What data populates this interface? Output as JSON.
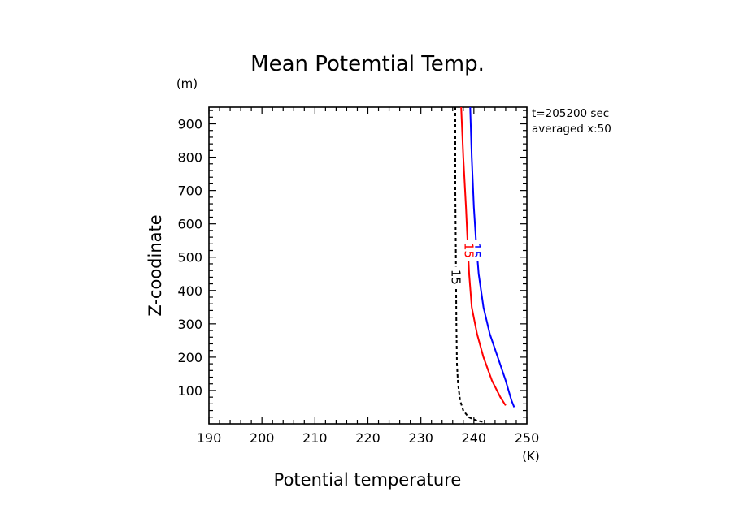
{
  "chart_data": {
    "type": "line",
    "title": "Mean Potemtial Temp.",
    "xlabel": "Potential temperature",
    "ylabel": "Z-coodinate",
    "x_unit": "(K)",
    "y_unit": "(m)",
    "xlim": [
      190,
      250
    ],
    "ylim": [
      0,
      950
    ],
    "x_ticks": [
      190,
      200,
      210,
      220,
      230,
      240,
      250
    ],
    "y_ticks": [
      100,
      200,
      300,
      400,
      500,
      600,
      700,
      800,
      900
    ],
    "annotations": [
      "t=205200 sec",
      "averaged  x:50"
    ],
    "grid": false,
    "series": [
      {
        "color": "#0000ff",
        "style": "solid",
        "label": "15",
        "label_at": [
          240.3,
          520
        ],
        "points": [
          [
            239.3,
            950
          ],
          [
            239.6,
            800
          ],
          [
            240.0,
            650
          ],
          [
            240.4,
            550
          ],
          [
            240.9,
            450
          ],
          [
            241.8,
            350
          ],
          [
            243.0,
            270
          ],
          [
            244.5,
            200
          ],
          [
            246.0,
            130
          ],
          [
            247.1,
            70
          ],
          [
            247.6,
            50
          ]
        ]
      },
      {
        "color": "#ff0000",
        "style": "solid",
        "label": "15",
        "label_at": [
          239.0,
          520
        ],
        "points": [
          [
            237.6,
            950
          ],
          [
            238.0,
            800
          ],
          [
            238.5,
            650
          ],
          [
            238.8,
            550
          ],
          [
            239.1,
            450
          ],
          [
            239.6,
            350
          ],
          [
            240.6,
            270
          ],
          [
            241.8,
            200
          ],
          [
            243.4,
            130
          ],
          [
            245.0,
            80
          ],
          [
            246.0,
            55
          ]
        ]
      },
      {
        "color": "#000000",
        "style": "dashed",
        "label": "15",
        "label_at": [
          236.6,
          440
        ],
        "points": [
          [
            236.5,
            950
          ],
          [
            236.5,
            700
          ],
          [
            236.6,
            500
          ],
          [
            236.7,
            300
          ],
          [
            236.8,
            180
          ],
          [
            237.0,
            120
          ],
          [
            237.4,
            70
          ],
          [
            238.0,
            40
          ],
          [
            239.0,
            20
          ],
          [
            240.5,
            10
          ],
          [
            242.0,
            5
          ]
        ]
      }
    ]
  }
}
